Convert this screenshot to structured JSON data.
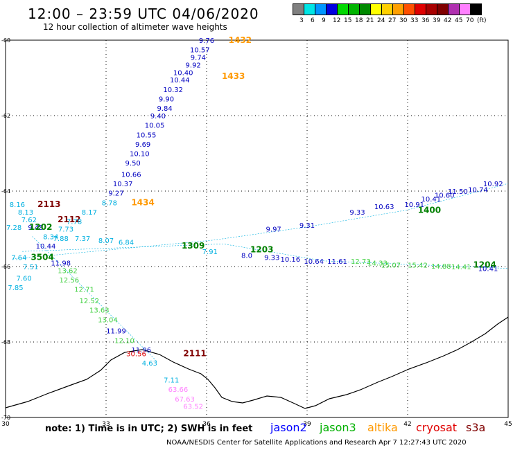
{
  "title": "12:00 – 23:59 UTC 04/06/2020",
  "subtitle": "12 hour collection of altimeter wave heights",
  "scale": {
    "colors": [
      "#808080",
      "#00e5e5",
      "#0096ff",
      "#0000e0",
      "#00d800",
      "#00b400",
      "#008a00",
      "#ffff00",
      "#ffd000",
      "#ffa000",
      "#ff5000",
      "#e00000",
      "#a80000",
      "#800000",
      "#b030b0",
      "#ff80ff",
      "#000000"
    ],
    "labels": [
      "3",
      "6",
      "9",
      "12",
      "15",
      "18",
      "21",
      "24",
      "27",
      "30",
      "33",
      "36",
      "39",
      "42",
      "45",
      "70",
      "(ft)"
    ]
  },
  "map": {
    "x_ticks": [
      "30",
      "33",
      "36",
      "39",
      "42",
      "45"
    ],
    "y_ticks": [
      "-60",
      "-62",
      "-64",
      "-66",
      "-68",
      "-70"
    ],
    "lon_range": [
      30,
      45
    ],
    "lat_range": [
      -60,
      -70
    ]
  },
  "points": [
    {
      "t": "9.76",
      "lon": 36.0,
      "lat": -60.0,
      "c": "#0000c0"
    },
    {
      "t": "10.57",
      "lon": 35.8,
      "lat": -60.25,
      "c": "#0000c0"
    },
    {
      "t": "9.74",
      "lon": 35.75,
      "lat": -60.45,
      "c": "#0000c0"
    },
    {
      "t": "9.92",
      "lon": 35.6,
      "lat": -60.65,
      "c": "#0000c0"
    },
    {
      "t": "10.40",
      "lon": 35.3,
      "lat": -60.85,
      "c": "#0000c0"
    },
    {
      "t": "10.44",
      "lon": 35.2,
      "lat": -61.05,
      "c": "#0000c0"
    },
    {
      "t": "10.32",
      "lon": 35.0,
      "lat": -61.3,
      "c": "#0000c0"
    },
    {
      "t": "9.90",
      "lon": 34.8,
      "lat": -61.55,
      "c": "#0000c0"
    },
    {
      "t": "9.84",
      "lon": 34.75,
      "lat": -61.8,
      "c": "#0000c0"
    },
    {
      "t": "9.40",
      "lon": 34.55,
      "lat": -62.0,
      "c": "#0000c0"
    },
    {
      "t": "10.05",
      "lon": 34.45,
      "lat": -62.25,
      "c": "#0000c0"
    },
    {
      "t": "10.55",
      "lon": 34.2,
      "lat": -62.5,
      "c": "#0000c0"
    },
    {
      "t": "9.69",
      "lon": 34.1,
      "lat": -62.75,
      "c": "#0000c0"
    },
    {
      "t": "10.10",
      "lon": 34.0,
      "lat": -63.0,
      "c": "#0000c0"
    },
    {
      "t": "9.50",
      "lon": 33.8,
      "lat": -63.25,
      "c": "#0000c0"
    },
    {
      "t": "10.66",
      "lon": 33.75,
      "lat": -63.55,
      "c": "#0000c0"
    },
    {
      "t": "10.37",
      "lon": 33.5,
      "lat": -63.8,
      "c": "#0000c0"
    },
    {
      "t": "9.27",
      "lon": 33.3,
      "lat": -64.05,
      "c": "#0000c0"
    },
    {
      "t": "8.78",
      "lon": 33.1,
      "lat": -64.3,
      "c": "#00b0e0"
    },
    {
      "t": "1432",
      "lon": 37.0,
      "lat": -60.0,
      "c": "#ff9900",
      "b": 1
    },
    {
      "t": "1433",
      "lon": 36.8,
      "lat": -60.95,
      "c": "#ff9900",
      "b": 1
    },
    {
      "t": "1434",
      "lon": 34.1,
      "lat": -64.3,
      "c": "#ff9900",
      "b": 1
    },
    {
      "t": "8.16",
      "lon": 30.35,
      "lat": -64.35,
      "c": "#00b0e0"
    },
    {
      "t": "2113",
      "lon": 31.3,
      "lat": -64.35,
      "c": "#800000",
      "b": 1
    },
    {
      "t": "8.13",
      "lon": 30.6,
      "lat": -64.55,
      "c": "#00b0e0"
    },
    {
      "t": "8.17",
      "lon": 32.5,
      "lat": -64.55,
      "c": "#00b0e0"
    },
    {
      "t": "7.62",
      "lon": 30.7,
      "lat": -64.75,
      "c": "#00b0e0"
    },
    {
      "t": "2112",
      "lon": 31.9,
      "lat": -64.75,
      "c": "#800000",
      "b": 1
    },
    {
      "t": "7.78",
      "lon": 32.05,
      "lat": -64.8,
      "c": "#00b0e0"
    },
    {
      "t": "7.28",
      "lon": 30.25,
      "lat": -64.95,
      "c": "#00b0e0"
    },
    {
      "t": "9.48",
      "lon": 30.9,
      "lat": -64.95,
      "c": "#0000c0"
    },
    {
      "t": "1202",
      "lon": 31.05,
      "lat": -64.95,
      "c": "#008000",
      "b": 1
    },
    {
      "t": "7.73",
      "lon": 31.8,
      "lat": -65.0,
      "c": "#00b0e0"
    },
    {
      "t": "8.34",
      "lon": 31.35,
      "lat": -65.2,
      "c": "#00b0e0"
    },
    {
      "t": "7.88",
      "lon": 31.65,
      "lat": -65.25,
      "c": "#00b0e0"
    },
    {
      "t": "7.37",
      "lon": 32.3,
      "lat": -65.25,
      "c": "#00b0e0"
    },
    {
      "t": "8.07",
      "lon": 33.0,
      "lat": -65.3,
      "c": "#00b0e0"
    },
    {
      "t": "6.84",
      "lon": 33.6,
      "lat": -65.35,
      "c": "#00b0e0"
    },
    {
      "t": "10.44",
      "lon": 31.2,
      "lat": -65.45,
      "c": "#0000c0"
    },
    {
      "t": "7.64",
      "lon": 30.4,
      "lat": -65.75,
      "c": "#00b0e0"
    },
    {
      "t": "3504",
      "lon": 31.1,
      "lat": -65.75,
      "c": "#008000",
      "b": 1
    },
    {
      "t": "11.98",
      "lon": 31.65,
      "lat": -65.9,
      "c": "#0000c0"
    },
    {
      "t": "7.51",
      "lon": 30.75,
      "lat": -66.0,
      "c": "#00b0e0"
    },
    {
      "t": "13.62",
      "lon": 31.85,
      "lat": -66.1,
      "c": "#40d040"
    },
    {
      "t": "7.60",
      "lon": 30.55,
      "lat": -66.3,
      "c": "#00b0e0"
    },
    {
      "t": "12.56",
      "lon": 31.9,
      "lat": -66.35,
      "c": "#40d040"
    },
    {
      "t": "7.85",
      "lon": 30.3,
      "lat": -66.55,
      "c": "#00b0e0"
    },
    {
      "t": "12.71",
      "lon": 32.35,
      "lat": -66.6,
      "c": "#40d040"
    },
    {
      "t": "12.52",
      "lon": 32.5,
      "lat": -66.9,
      "c": "#40d040"
    },
    {
      "t": "13.63",
      "lon": 32.8,
      "lat": -67.15,
      "c": "#40d040"
    },
    {
      "t": "13.04",
      "lon": 33.05,
      "lat": -67.4,
      "c": "#40d040"
    },
    {
      "t": "11.99",
      "lon": 33.3,
      "lat": -67.7,
      "c": "#0000c0"
    },
    {
      "t": "12.10",
      "lon": 33.55,
      "lat": -67.95,
      "c": "#40d040"
    },
    {
      "t": "11.96",
      "lon": 34.05,
      "lat": -68.2,
      "c": "#0000c0"
    },
    {
      "t": "30.56",
      "lon": 33.9,
      "lat": -68.3,
      "c": "#e00000"
    },
    {
      "t": "2111",
      "lon": 35.65,
      "lat": -68.3,
      "c": "#800000",
      "b": 1
    },
    {
      "t": "4.63",
      "lon": 34.3,
      "lat": -68.55,
      "c": "#00b0e0"
    },
    {
      "t": "1309",
      "lon": 35.6,
      "lat": -65.45,
      "c": "#008000",
      "b": 1
    },
    {
      "t": "7.91",
      "lon": 36.1,
      "lat": -65.6,
      "c": "#00b0e0"
    },
    {
      "t": "1203",
      "lon": 37.65,
      "lat": -65.55,
      "c": "#008000",
      "b": 1
    },
    {
      "t": "8.0",
      "lon": 37.2,
      "lat": -65.7,
      "c": "#0000c0"
    },
    {
      "t": "9.33",
      "lon": 37.95,
      "lat": -65.75,
      "c": "#0000c0"
    },
    {
      "t": "10.16",
      "lon": 38.5,
      "lat": -65.8,
      "c": "#0000c0"
    },
    {
      "t": "10.64",
      "lon": 39.2,
      "lat": -65.85,
      "c": "#0000c0"
    },
    {
      "t": "11.61",
      "lon": 39.9,
      "lat": -65.85,
      "c": "#0000c0"
    },
    {
      "t": "12.73",
      "lon": 40.6,
      "lat": -65.85,
      "c": "#40d040"
    },
    {
      "t": "14.33",
      "lon": 41.1,
      "lat": -65.9,
      "c": "#40d040"
    },
    {
      "t": "15.07",
      "lon": 41.5,
      "lat": -65.95,
      "c": "#40d040"
    },
    {
      "t": "15.42",
      "lon": 42.3,
      "lat": -65.95,
      "c": "#40d040"
    },
    {
      "t": "14.88",
      "lon": 43.0,
      "lat": -65.98,
      "c": "#40d040"
    },
    {
      "t": "14.41",
      "lon": 43.6,
      "lat": -66.0,
      "c": "#40d040"
    },
    {
      "t": "1204",
      "lon": 44.3,
      "lat": -65.95,
      "c": "#008000",
      "b": 1
    },
    {
      "t": "10.41",
      "lon": 44.4,
      "lat": -66.05,
      "c": "#0000c0"
    },
    {
      "t": "9.97",
      "lon": 38.0,
      "lat": -65.0,
      "c": "#0000c0"
    },
    {
      "t": "9.31",
      "lon": 39.0,
      "lat": -64.9,
      "c": "#0000c0"
    },
    {
      "t": "9.33",
      "lon": 40.5,
      "lat": -64.55,
      "c": "#0000c0"
    },
    {
      "t": "10.63",
      "lon": 41.3,
      "lat": -64.4,
      "c": "#0000c0"
    },
    {
      "t": "10.91",
      "lon": 42.2,
      "lat": -64.35,
      "c": "#0000c0"
    },
    {
      "t": "1400",
      "lon": 42.65,
      "lat": -64.5,
      "c": "#008000",
      "b": 1
    },
    {
      "t": "10.41",
      "lon": 42.7,
      "lat": -64.2,
      "c": "#0000c0"
    },
    {
      "t": "10.60",
      "lon": 43.1,
      "lat": -64.1,
      "c": "#0000c0"
    },
    {
      "t": "11.50",
      "lon": 43.5,
      "lat": -64.0,
      "c": "#0000c0"
    },
    {
      "t": "10.74",
      "lon": 44.1,
      "lat": -63.95,
      "c": "#0000c0"
    },
    {
      "t": "10.92",
      "lon": 44.55,
      "lat": -63.8,
      "c": "#0000c0"
    },
    {
      "t": "7.11",
      "lon": 34.95,
      "lat": -69.0,
      "c": "#00b0e0"
    },
    {
      "t": "63.66",
      "lon": 35.15,
      "lat": -69.25,
      "c": "#ff80ff"
    },
    {
      "t": "67.63",
      "lon": 35.35,
      "lat": -69.5,
      "c": "#ff80ff"
    },
    {
      "t": "63.52",
      "lon": 35.6,
      "lat": -69.7,
      "c": "#ff80ff"
    }
  ],
  "note": "note: 1) Time is in UTC; 2) SWH is in feet",
  "legend": [
    {
      "label": "jason2",
      "color": "#0000ff"
    },
    {
      "label": "jason3",
      "color": "#00b000"
    },
    {
      "label": "altika",
      "color": "#ff9900"
    },
    {
      "label": "cryosat",
      "color": "#e00000"
    },
    {
      "label": "s3a",
      "color": "#800000"
    }
  ],
  "footer": "NOAA/NESDIS Center for Satellite Applications and Research   Apr  7 12:27:43 UTC 2020"
}
